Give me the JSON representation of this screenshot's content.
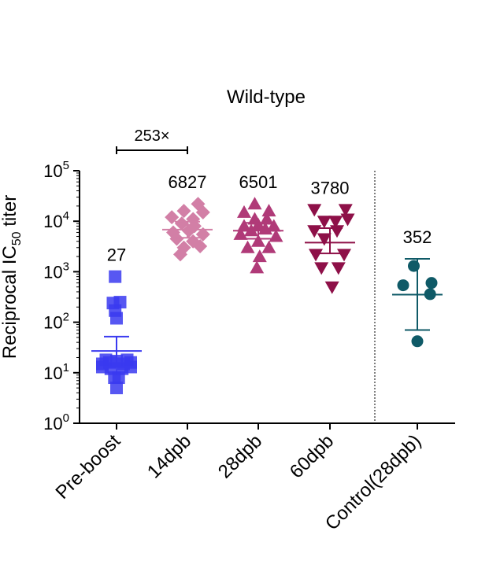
{
  "chart_data": {
    "type": "scatter",
    "title": "Wild-type",
    "ylabel": {
      "prefix": "Reciprocal IC",
      "subscript": "50",
      "suffix": " titer"
    },
    "y_scale": "log10",
    "ylim": [
      1,
      100000
    ],
    "y_ticks": [
      {
        "value": 1,
        "base": "10",
        "exp": "0"
      },
      {
        "value": 10,
        "base": "10",
        "exp": "1"
      },
      {
        "value": 100,
        "base": "10",
        "exp": "2"
      },
      {
        "value": 1000,
        "base": "10",
        "exp": "3"
      },
      {
        "value": 10000,
        "base": "10",
        "exp": "4"
      },
      {
        "value": 100000,
        "base": "10",
        "exp": "5"
      }
    ],
    "categories": [
      "Pre-boost",
      "14dpb",
      "28dpb",
      "60dpb",
      "Control(28dpb)"
    ],
    "bracket": {
      "from": "Pre-boost",
      "to": "14dpb",
      "label": "253×"
    },
    "series": [
      {
        "category": "Pre-boost",
        "color": "#3a3af0",
        "marker": "square",
        "gmt_label": "27",
        "center": 27,
        "err_low": 13,
        "err_high": 52,
        "points": [
          {
            "dx": -0.02,
            "y": 800
          },
          {
            "dx": -0.05,
            "y": 240
          },
          {
            "dx": 0.05,
            "y": 250
          },
          {
            "dx": -0.02,
            "y": 170
          },
          {
            "dx": 0.0,
            "y": 120
          },
          {
            "dx": -0.2,
            "y": 15
          },
          {
            "dx": -0.1,
            "y": 16
          },
          {
            "dx": 0.0,
            "y": 17
          },
          {
            "dx": 0.1,
            "y": 15
          },
          {
            "dx": 0.2,
            "y": 16
          },
          {
            "dx": -0.15,
            "y": 18
          },
          {
            "dx": 0.15,
            "y": 18
          },
          {
            "dx": -0.08,
            "y": 12
          },
          {
            "dx": 0.08,
            "y": 12
          },
          {
            "dx": -0.2,
            "y": 13
          },
          {
            "dx": 0.2,
            "y": 13
          },
          {
            "dx": -0.03,
            "y": 8
          },
          {
            "dx": 0.03,
            "y": 8
          },
          {
            "dx": 0.0,
            "y": 5
          }
        ]
      },
      {
        "category": "14dpb",
        "color": "#d27fa6",
        "marker": "diamond",
        "gmt_label": "6827",
        "center": 6827,
        "err_low": 4700,
        "err_high": 9800,
        "points": [
          {
            "dx": 0.15,
            "y": 22000
          },
          {
            "dx": -0.05,
            "y": 16000
          },
          {
            "dx": 0.22,
            "y": 15000
          },
          {
            "dx": -0.22,
            "y": 12000
          },
          {
            "dx": 0.08,
            "y": 11000
          },
          {
            "dx": -0.08,
            "y": 9000
          },
          {
            "dx": 0.1,
            "y": 8000
          },
          {
            "dx": -0.2,
            "y": 6000
          },
          {
            "dx": 0.02,
            "y": 6500
          },
          {
            "dx": 0.22,
            "y": 5500
          },
          {
            "dx": -0.15,
            "y": 4500
          },
          {
            "dx": 0.08,
            "y": 4000
          },
          {
            "dx": -0.05,
            "y": 3000
          },
          {
            "dx": 0.18,
            "y": 3200
          },
          {
            "dx": -0.1,
            "y": 2200
          }
        ]
      },
      {
        "category": "28dpb",
        "color": "#b03a78",
        "marker": "triangle-up",
        "gmt_label": "6501",
        "center": 6501,
        "err_low": 4500,
        "err_high": 9300,
        "points": [
          {
            "dx": -0.05,
            "y": 22000
          },
          {
            "dx": -0.2,
            "y": 15000
          },
          {
            "dx": 0.15,
            "y": 16000
          },
          {
            "dx": -0.05,
            "y": 11000
          },
          {
            "dx": 0.12,
            "y": 11000
          },
          {
            "dx": -0.2,
            "y": 8000
          },
          {
            "dx": 0.0,
            "y": 8500
          },
          {
            "dx": 0.22,
            "y": 8000
          },
          {
            "dx": -0.1,
            "y": 6500
          },
          {
            "dx": 0.1,
            "y": 7000
          },
          {
            "dx": -0.25,
            "y": 5500
          },
          {
            "dx": 0.25,
            "y": 5000
          },
          {
            "dx": 0.0,
            "y": 4000
          },
          {
            "dx": -0.15,
            "y": 3000
          },
          {
            "dx": 0.15,
            "y": 3000
          },
          {
            "dx": 0.02,
            "y": 2000
          },
          {
            "dx": -0.02,
            "y": 1200
          }
        ]
      },
      {
        "category": "60dpb",
        "color": "#8e1048",
        "marker": "triangle-down",
        "gmt_label": "3780",
        "center": 3780,
        "err_low": 2300,
        "err_high": 7300,
        "points": [
          {
            "dx": -0.22,
            "y": 17000
          },
          {
            "dx": 0.22,
            "y": 17000
          },
          {
            "dx": -0.08,
            "y": 10000
          },
          {
            "dx": 0.08,
            "y": 10000
          },
          {
            "dx": 0.25,
            "y": 11000
          },
          {
            "dx": -0.22,
            "y": 6500
          },
          {
            "dx": 0.1,
            "y": 6500
          },
          {
            "dx": -0.08,
            "y": 4500
          },
          {
            "dx": -0.2,
            "y": 2200
          },
          {
            "dx": 0.2,
            "y": 2200
          },
          {
            "dx": -0.12,
            "y": 1200
          },
          {
            "dx": 0.12,
            "y": 1200
          },
          {
            "dx": 0.03,
            "y": 500
          }
        ]
      },
      {
        "category": "Control(28dpb)",
        "color": "#0f5a67",
        "marker": "circle",
        "gmt_label": "352",
        "center": 352,
        "err_low": 70,
        "err_high": 1800,
        "points": [
          {
            "dx": -0.05,
            "y": 1300
          },
          {
            "dx": -0.2,
            "y": 540
          },
          {
            "dx": 0.2,
            "y": 600
          },
          {
            "dx": 0.18,
            "y": 360
          },
          {
            "dx": 0.0,
            "y": 42
          }
        ]
      }
    ]
  }
}
